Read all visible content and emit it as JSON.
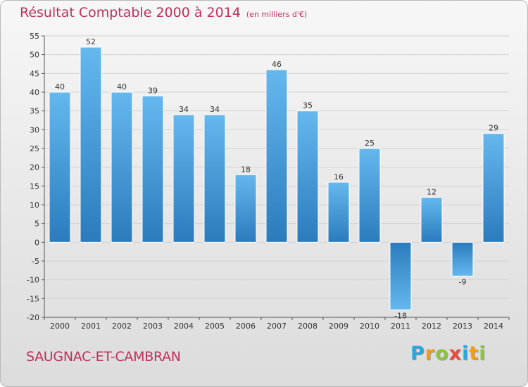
{
  "header": {
    "title": "Résultat Comptable 2000 à 2014",
    "unit": "(en milliers d'€)"
  },
  "footer": {
    "commune": "SAUGNAC-ET-CAMBRAN",
    "logo_letters": [
      "P",
      "r",
      "o",
      "x",
      "i",
      "t",
      "i"
    ],
    "logo_colors": [
      "#2aa6df",
      "#f39c12",
      "#8cc63f",
      "#e74c3c",
      "#2aa6df",
      "#f39c12",
      "#8cc63f"
    ]
  },
  "chart_data": {
    "type": "bar",
    "title": "Résultat Comptable 2000 à 2014",
    "ylabel": "(en milliers d'€)",
    "xlabel": "",
    "categories": [
      "2000",
      "2001",
      "2002",
      "2003",
      "2004",
      "2005",
      "2006",
      "2007",
      "2008",
      "2009",
      "2010",
      "2011",
      "2012",
      "2013",
      "2014"
    ],
    "values": [
      40,
      52,
      40,
      39,
      34,
      34,
      18,
      46,
      35,
      16,
      25,
      -18,
      12,
      -9,
      29
    ],
    "labels": [
      "40",
      "52",
      "40",
      "39",
      "34",
      "34",
      "18",
      "46",
      "35",
      "16",
      "25",
      "-18",
      "12",
      "-9",
      "29"
    ],
    "ylim": [
      -20,
      55
    ],
    "yticks": [
      -20,
      -15,
      -10,
      -5,
      0,
      5,
      10,
      15,
      20,
      25,
      30,
      35,
      40,
      45,
      50,
      55
    ],
    "grid": true,
    "bar_color_top": "#5fb3ea",
    "bar_color_bottom": "#2e7fc0"
  }
}
